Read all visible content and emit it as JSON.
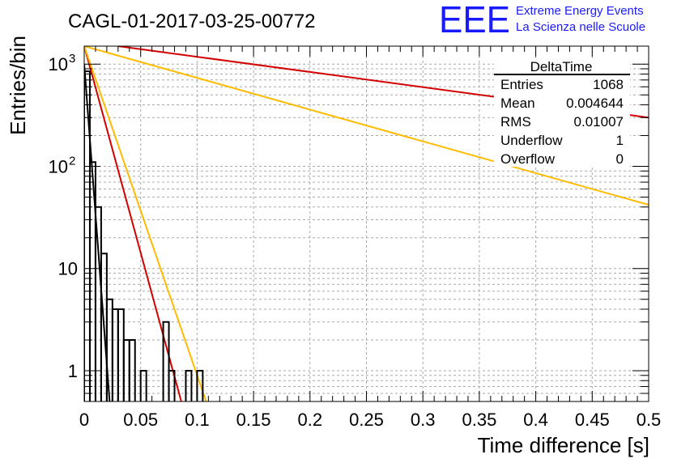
{
  "title": "CAGL-01-2017-03-25-00772",
  "logo": {
    "mark": "EEE",
    "line1": "Extreme Energy Events",
    "line2": "La Scienza nelle Scuole",
    "color": "#1a1aff"
  },
  "stats": {
    "name": "DeltaTime",
    "rows": [
      {
        "label": "Entries",
        "value": "1068"
      },
      {
        "label": "Mean",
        "value": "0.004644"
      },
      {
        "label": "RMS",
        "value": "0.01007"
      },
      {
        "label": "Underflow",
        "value": "1"
      },
      {
        "label": "Overflow",
        "value": "0"
      }
    ]
  },
  "chart_data": {
    "type": "histogram",
    "xlabel": "Time difference [s]",
    "ylabel": "Entries/bin",
    "xlim": [
      0,
      0.5
    ],
    "ylim": [
      0.5,
      1500
    ],
    "yscale": "log",
    "grid": true,
    "x_ticks": [
      "0",
      "0.05",
      "0.1",
      "0.15",
      "0.2",
      "0.25",
      "0.3",
      "0.35",
      "0.4",
      "0.45",
      "0.5"
    ],
    "y_ticks": [
      {
        "value": 1,
        "label": "1"
      },
      {
        "value": 10,
        "label": "10"
      },
      {
        "value": 100,
        "label": "10",
        "exp": "2"
      },
      {
        "value": 1000,
        "label": "10",
        "exp": "3"
      }
    ],
    "bin_width": 0.005,
    "bins": [
      {
        "x": 0.0,
        "count": 850
      },
      {
        "x": 0.005,
        "count": 110
      },
      {
        "x": 0.01,
        "count": 40
      },
      {
        "x": 0.015,
        "count": 14
      },
      {
        "x": 0.02,
        "count": 5
      },
      {
        "x": 0.025,
        "count": 4
      },
      {
        "x": 0.03,
        "count": 4
      },
      {
        "x": 0.035,
        "count": 2
      },
      {
        "x": 0.04,
        "count": 2
      },
      {
        "x": 0.045,
        "count": 0
      },
      {
        "x": 0.05,
        "count": 1
      },
      {
        "x": 0.055,
        "count": 0
      },
      {
        "x": 0.06,
        "count": 0
      },
      {
        "x": 0.065,
        "count": 0
      },
      {
        "x": 0.07,
        "count": 3
      },
      {
        "x": 0.075,
        "count": 1
      },
      {
        "x": 0.08,
        "count": 0
      },
      {
        "x": 0.085,
        "count": 0
      },
      {
        "x": 0.09,
        "count": 1
      },
      {
        "x": 0.095,
        "count": 0
      },
      {
        "x": 0.1,
        "count": 1
      },
      {
        "x": 0.105,
        "count": 0
      }
    ],
    "fit_curves": [
      {
        "color": "#000000",
        "points": [
          [
            0.0,
            1000
          ],
          [
            0.0225,
            0.5
          ]
        ]
      },
      {
        "color": "#d40000",
        "points": [
          [
            0.0,
            1500
          ],
          [
            0.086,
            0.5
          ]
        ]
      },
      {
        "color": "#ffbb00",
        "points": [
          [
            0.0,
            1500
          ],
          [
            0.108,
            0.5
          ]
        ]
      },
      {
        "color": "#d40000",
        "points": [
          [
            0.03,
            1500
          ],
          [
            0.5,
            300
          ]
        ]
      },
      {
        "color": "#ffbb00",
        "points": [
          [
            0.0,
            1500
          ],
          [
            0.5,
            42
          ]
        ]
      }
    ]
  }
}
